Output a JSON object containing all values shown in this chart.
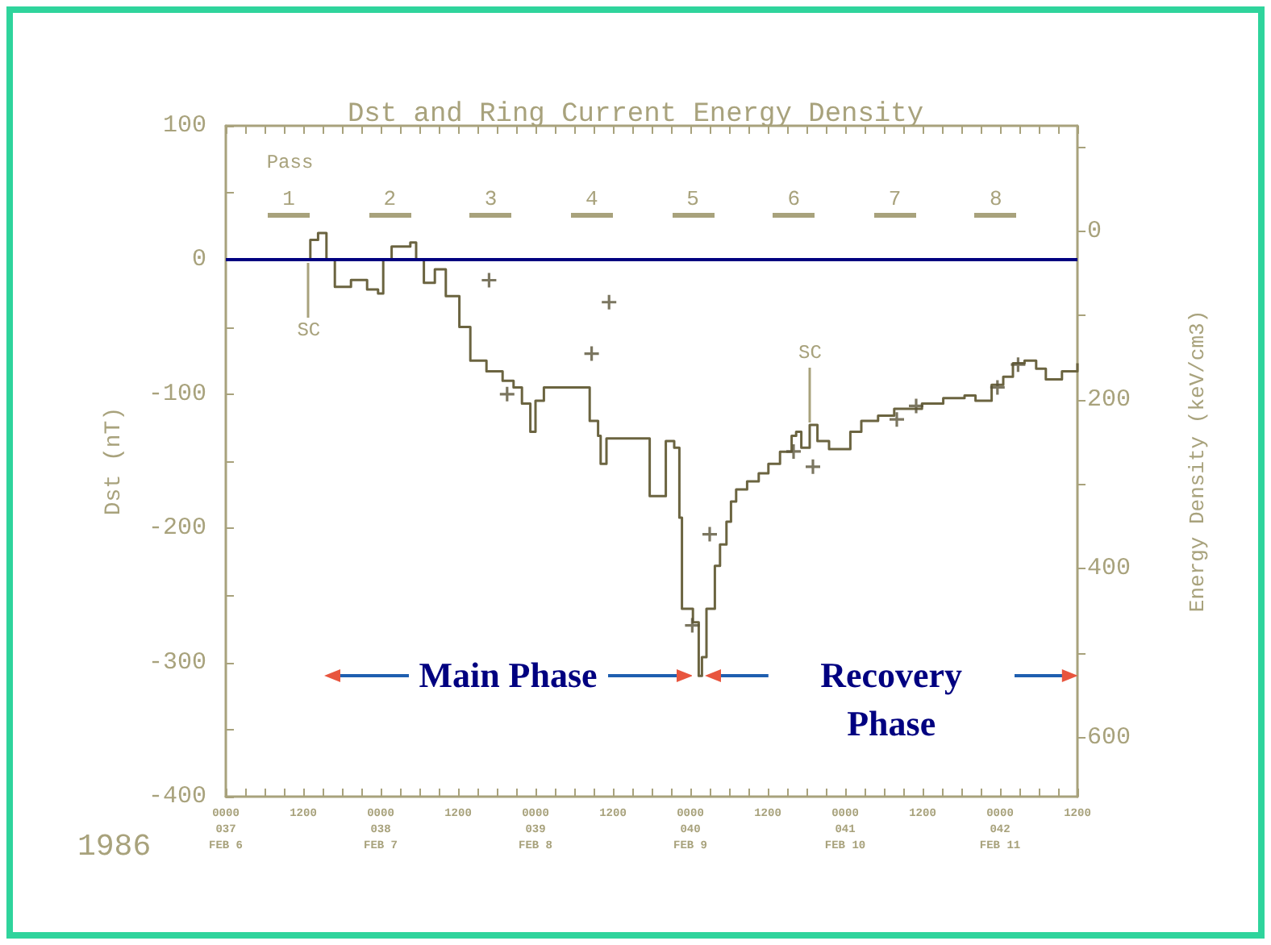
{
  "chart_data": {
    "type": "step",
    "title": "Dst and Ring Current Energy Density",
    "ylabel": "Dst (nT)",
    "y2label": "Energy Density (keV/cm3)",
    "xlim": [
      "1986-02-06T00:00",
      "1986-02-11T12:00"
    ],
    "xticks": [
      {
        "value": "1986-02-06T00:00",
        "label": "0000\n037\nFEB 6"
      },
      {
        "value": "1986-02-06T03:00",
        "label": null
      },
      {
        "value": "1986-02-06T06:00",
        "label": null
      },
      {
        "value": "1986-02-06T09:00",
        "label": null
      },
      {
        "value": "1986-02-06T12:00",
        "label": "1200"
      },
      {
        "value": "1986-02-06T15:00",
        "label": null
      },
      {
        "value": "1986-02-06T18:00",
        "label": null
      },
      {
        "value": "1986-02-06T21:00",
        "label": null
      },
      {
        "value": "1986-02-07T00:00",
        "label": "0000\n038\nFEB 7"
      },
      {
        "value": "1986-02-07T03:00",
        "label": null
      },
      {
        "value": "1986-02-07T06:00",
        "label": null
      },
      {
        "value": "1986-02-07T09:00",
        "label": null
      },
      {
        "value": "1986-02-07T12:00",
        "label": "1200"
      },
      {
        "value": "1986-02-07T15:00",
        "label": null
      },
      {
        "value": "1986-02-07T18:00",
        "label": null
      },
      {
        "value": "1986-02-07T21:00",
        "label": null
      },
      {
        "value": "1986-02-08T00:00",
        "label": "0000\n039\nFEB 8"
      },
      {
        "value": "1986-02-08T03:00",
        "label": null
      },
      {
        "value": "1986-02-08T06:00",
        "label": null
      },
      {
        "value": "1986-02-08T09:00",
        "label": null
      },
      {
        "value": "1986-02-08T12:00",
        "label": "1200"
      },
      {
        "value": "1986-02-08T15:00",
        "label": null
      },
      {
        "value": "1986-02-08T18:00",
        "label": null
      },
      {
        "value": "1986-02-08T21:00",
        "label": null
      },
      {
        "value": "1986-02-09T00:00",
        "label": "0000\n040\nFEB 9"
      },
      {
        "value": "1986-02-09T03:00",
        "label": null
      },
      {
        "value": "1986-02-09T06:00",
        "label": null
      },
      {
        "value": "1986-02-09T09:00",
        "label": null
      },
      {
        "value": "1986-02-09T12:00",
        "label": "1200"
      },
      {
        "value": "1986-02-09T15:00",
        "label": null
      },
      {
        "value": "1986-02-09T18:00",
        "label": null
      },
      {
        "value": "1986-02-09T21:00",
        "label": null
      },
      {
        "value": "1986-02-10T00:00",
        "label": "0000\n041\nFEB 10"
      },
      {
        "value": "1986-02-10T03:00",
        "label": null
      },
      {
        "value": "1986-02-10T06:00",
        "label": null
      },
      {
        "value": "1986-02-10T09:00",
        "label": null
      },
      {
        "value": "1986-02-10T12:00",
        "label": "1200"
      },
      {
        "value": "1986-02-10T15:00",
        "label": null
      },
      {
        "value": "1986-02-10T18:00",
        "label": null
      },
      {
        "value": "1986-02-10T21:00",
        "label": null
      },
      {
        "value": "1986-02-11T00:00",
        "label": "0000\n042\nFEB 11"
      },
      {
        "value": "1986-02-11T03:00",
        "label": null
      },
      {
        "value": "1986-02-11T06:00",
        "label": null
      },
      {
        "value": "1986-02-11T09:00",
        "label": null
      },
      {
        "value": "1986-02-11T12:00",
        "label": "1200"
      }
    ],
    "ylim": [
      -400,
      100
    ],
    "yticks": [
      -400,
      {
        "value": -350,
        "label": null
      },
      -300,
      {
        "value": -250,
        "label": null
      },
      -200,
      {
        "value": -150,
        "label": null
      },
      -100,
      {
        "value": -50,
        "label": null
      },
      0,
      {
        "value": 50,
        "label": null
      },
      100
    ],
    "y2lim": [
      670,
      -125
    ],
    "y2ticks": [
      {
        "value": -100,
        "label": null
      },
      0,
      {
        "value": 100,
        "label": null
      },
      200,
      {
        "value": 300,
        "label": null
      },
      400,
      {
        "value": 500,
        "label": null
      },
      600
    ],
    "series": [
      {
        "color": "#6b6440",
        "marker": "none",
        "x": [
          "1986-02-06T00:00",
          "1986-02-06T12:36",
          "1986-02-06T13:06",
          "1986-02-06T14:18",
          "1986-02-06T15:12",
          "1986-02-06T15:36",
          "1986-02-06T16:54",
          "1986-02-06T19:24",
          "1986-02-06T21:54",
          "1986-02-06T23:36",
          "1986-02-07T00:24",
          "1986-02-07T01:42",
          "1986-02-07T04:36",
          "1986-02-07T05:30",
          "1986-02-07T06:42",
          "1986-02-07T08:24",
          "1986-02-07T10:06",
          "1986-02-07T12:12",
          "1986-02-07T13:54",
          "1986-02-07T16:24",
          "1986-02-07T18:54",
          "1986-02-07T20:36",
          "1986-02-07T21:54",
          "1986-02-07T23:12",
          "1986-02-08T00:00",
          "1986-02-08T01:18",
          "1986-02-08T06:42",
          "1986-02-08T08:24",
          "1986-02-08T09:42",
          "1986-02-08T10:06",
          "1986-02-08T11:00",
          "1986-02-08T16:00",
          "1986-02-08T17:42",
          "1986-02-08T19:24",
          "1986-02-08T20:12",
          "1986-02-08T21:30",
          "1986-02-08T22:18",
          "1986-02-08T22:42",
          "1986-02-09T00:24",
          "1986-02-09T01:18",
          "1986-02-09T01:48",
          "1986-02-09T02:30",
          "1986-02-09T03:48",
          "1986-02-09T04:36",
          "1986-02-09T05:36",
          "1986-02-09T06:18",
          "1986-02-09T07:06",
          "1986-02-09T08:48",
          "1986-02-09T10:36",
          "1986-02-09T12:06",
          "1986-02-09T13:54",
          "1986-02-09T15:42",
          "1986-02-09T16:24",
          "1986-02-09T17:12",
          "1986-02-09T18:30",
          "1986-02-09T19:42",
          "1986-02-09T21:30",
          "1986-02-09T23:12",
          "1986-02-10T00:48",
          "1986-02-10T02:30",
          "1986-02-10T05:06",
          "1986-02-10T07:36",
          "1986-02-10T11:54",
          "1986-02-10T15:12",
          "1986-02-10T18:30",
          "1986-02-10T20:12",
          "1986-02-10T22:42",
          "1986-02-11T00:30",
          "1986-02-11T02:00",
          "1986-02-11T03:48",
          "1986-02-11T05:36",
          "1986-02-11T07:06",
          "1986-02-11T09:36",
          "1986-02-11T12:00"
        ],
        "values": [
          0,
          0,
          15,
          20,
          20,
          0,
          -20,
          -15,
          -22,
          -25,
          0,
          10,
          13,
          0,
          -17,
          -7,
          -27,
          -50,
          -75,
          -83,
          -90,
          -95,
          -107,
          -128,
          -105,
          -95,
          -95,
          -120,
          -131,
          -152,
          -133,
          -133,
          -176,
          -176,
          -135,
          -140,
          -192,
          -260,
          -270,
          -310,
          -296,
          -260,
          -228,
          -212,
          -195,
          -180,
          -171,
          -165,
          -159,
          -152,
          -143,
          -131,
          -128,
          -140,
          -123,
          -135,
          -141,
          -141,
          -128,
          -120,
          -116,
          -111,
          -107,
          -103,
          -101,
          -105,
          -93,
          -87,
          -77,
          -75,
          -81,
          -89,
          -83,
          -77
        ]
      },
      {
        "type": "scatter",
        "axis": "y2",
        "marker": "cross",
        "color": "#5a5438",
        "x": [
          "1986-02-07T16:48",
          "1986-02-07T19:36",
          "1986-02-08T08:42",
          "1986-02-08T11:24",
          "1986-02-09T00:18",
          "1986-02-09T03:00",
          "1986-02-09T16:00",
          "1986-02-09T19:00",
          "1986-02-10T08:00",
          "1986-02-10T11:00",
          "1986-02-10T23:36",
          "1986-02-11T02:48"
        ],
        "values": [
          58,
          193,
          145,
          84,
          467,
          359,
          261,
          279,
          223,
          207,
          185,
          158
        ]
      }
    ],
    "ref_lines": [
      {
        "axis": "y",
        "value": 0,
        "color": "#000080"
      }
    ],
    "annotations": [
      "Pass",
      "1",
      "2",
      "3",
      "4",
      "5",
      "6",
      "7",
      "8",
      "Main Phase",
      "Recovery Phase",
      "1986",
      {
        "text": "SC",
        "x": "1986-02-06T12:48",
        "y": 0
      },
      {
        "text": "SC",
        "x": "1986-02-09T18:30",
        "y": -123
      }
    ]
  }
}
